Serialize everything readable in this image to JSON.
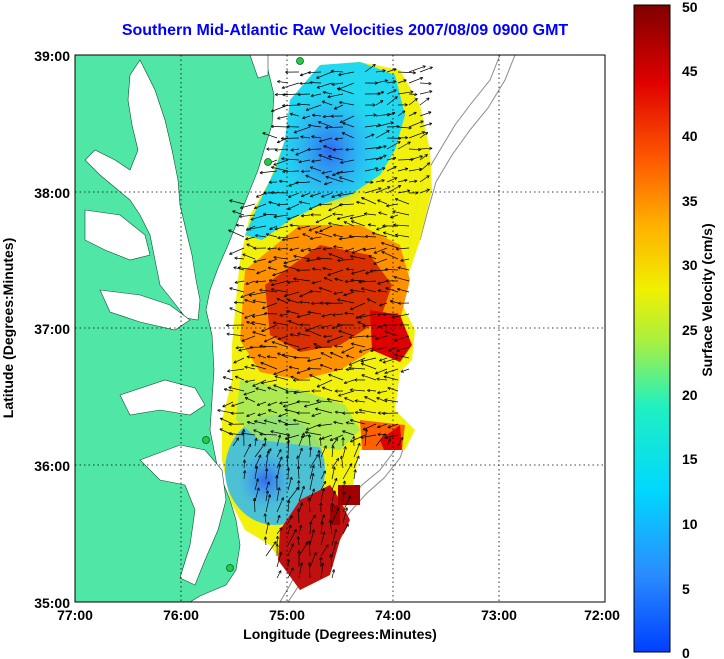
{
  "title": "Southern Mid-Atlantic Raw Velocities 2007/08/09 0900 GMT",
  "map": {
    "xlabel": "Longitude (Degrees:Minutes)",
    "ylabel": "Latitude (Degrees:Minutes)",
    "x_ticks": [
      "77:00",
      "76:00",
      "75:00",
      "74:00",
      "73:00",
      "72:00"
    ],
    "y_ticks": [
      "39:00",
      "38:00",
      "37:00",
      "36:00",
      "35:00"
    ],
    "lon_range": [
      -77,
      -72
    ],
    "lat_range": [
      35,
      39
    ],
    "grid": true,
    "land_color": "#4fe6a6"
  },
  "colorbar": {
    "label": "Surface Velocity (cm/s)",
    "range": [
      0,
      50
    ],
    "ticks": [
      "0",
      "5",
      "10",
      "15",
      "20",
      "25",
      "30",
      "35",
      "40",
      "45",
      "50"
    ],
    "colormap": "jet"
  }
}
